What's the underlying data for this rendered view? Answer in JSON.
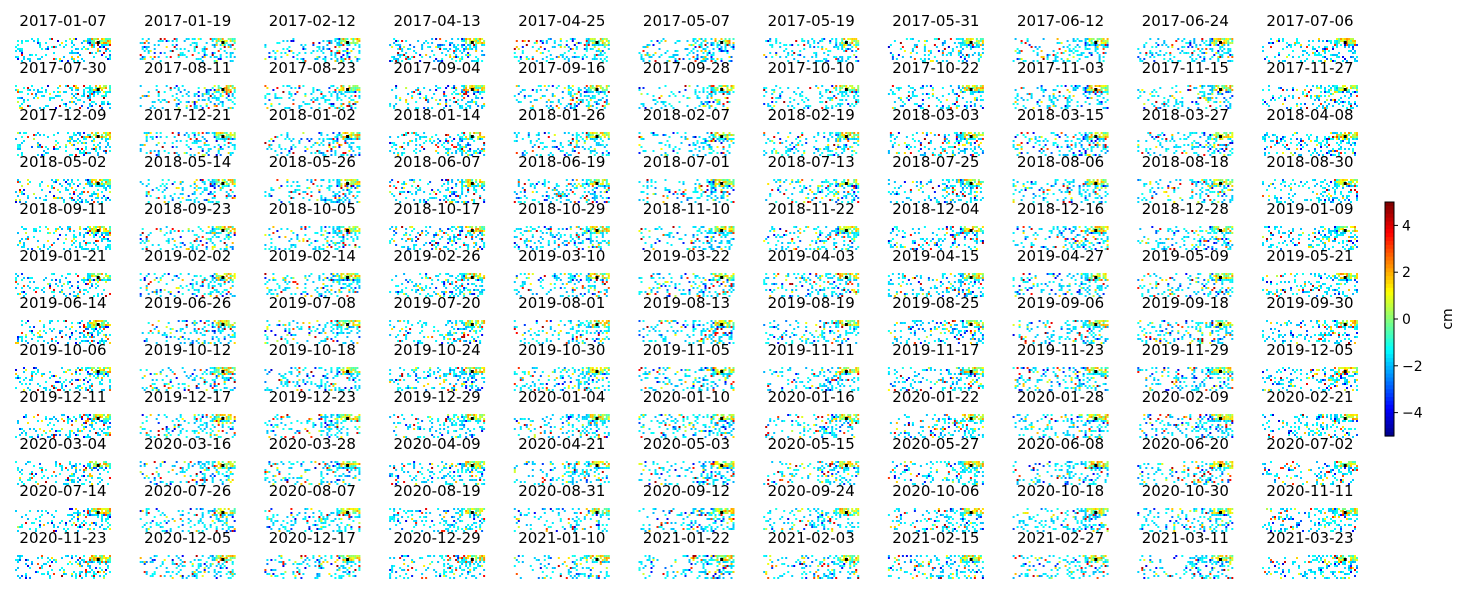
{
  "chart_data": {
    "type": "heatmap",
    "layout": {
      "rows": 12,
      "cols": 11
    },
    "panels": [
      "2017-01-07",
      "2017-01-19",
      "2017-02-12",
      "2017-04-13",
      "2017-04-25",
      "2017-05-07",
      "2017-05-19",
      "2017-05-31",
      "2017-06-12",
      "2017-06-24",
      "2017-07-06",
      "2017-07-30",
      "2017-08-11",
      "2017-08-23",
      "2017-09-04",
      "2017-09-16",
      "2017-09-28",
      "2017-10-10",
      "2017-10-22",
      "2017-11-03",
      "2017-11-15",
      "2017-11-27",
      "2017-12-09",
      "2017-12-21",
      "2018-01-02",
      "2018-01-14",
      "2018-01-26",
      "2018-02-07",
      "2018-02-19",
      "2018-03-03",
      "2018-03-15",
      "2018-03-27",
      "2018-04-08",
      "2018-05-02",
      "2018-05-14",
      "2018-05-26",
      "2018-06-07",
      "2018-06-19",
      "2018-07-01",
      "2018-07-13",
      "2018-07-25",
      "2018-08-06",
      "2018-08-18",
      "2018-08-30",
      "2018-09-11",
      "2018-09-23",
      "2018-10-05",
      "2018-10-17",
      "2018-10-29",
      "2018-11-10",
      "2018-11-22",
      "2018-12-04",
      "2018-12-16",
      "2018-12-28",
      "2019-01-09",
      "2019-01-21",
      "2019-02-02",
      "2019-02-14",
      "2019-02-26",
      "2019-03-10",
      "2019-03-22",
      "2019-04-03",
      "2019-04-15",
      "2019-04-27",
      "2019-05-09",
      "2019-05-21",
      "2019-06-14",
      "2019-06-26",
      "2019-07-08",
      "2019-07-20",
      "2019-08-01",
      "2019-08-13",
      "2019-08-19",
      "2019-08-25",
      "2019-09-06",
      "2019-09-18",
      "2019-09-30",
      "2019-10-06",
      "2019-10-12",
      "2019-10-18",
      "2019-10-24",
      "2019-10-30",
      "2019-11-05",
      "2019-11-11",
      "2019-11-17",
      "2019-11-23",
      "2019-11-29",
      "2019-12-05",
      "2019-12-11",
      "2019-12-17",
      "2019-12-23",
      "2019-12-29",
      "2020-01-04",
      "2020-01-10",
      "2020-01-16",
      "2020-01-22",
      "2020-01-28",
      "2020-02-09",
      "2020-02-21",
      "2020-03-04",
      "2020-03-16",
      "2020-03-28",
      "2020-04-09",
      "2020-04-21",
      "2020-05-03",
      "2020-05-15",
      "2020-05-27",
      "2020-06-08",
      "2020-06-20",
      "2020-07-02",
      "2020-07-14",
      "2020-07-26",
      "2020-08-07",
      "2020-08-19",
      "2020-08-31",
      "2020-09-12",
      "2020-09-24",
      "2020-10-06",
      "2020-10-18",
      "2020-10-30",
      "2020-11-11",
      "2020-11-23",
      "2020-12-05",
      "2020-12-17",
      "2020-12-29",
      "2021-01-10",
      "2021-01-22",
      "2021-02-03",
      "2021-02-15",
      "2021-02-27",
      "2021-03-11",
      "2021-03-23"
    ],
    "colorbar": {
      "label": "cm",
      "vmin": -5,
      "vmax": 5,
      "ticks": [
        -4,
        -2,
        0,
        2,
        4
      ],
      "tick_labels": [
        "−4",
        "−2",
        "0",
        "2",
        "4"
      ],
      "colormap": "jet"
    },
    "axes_visible": false
  }
}
